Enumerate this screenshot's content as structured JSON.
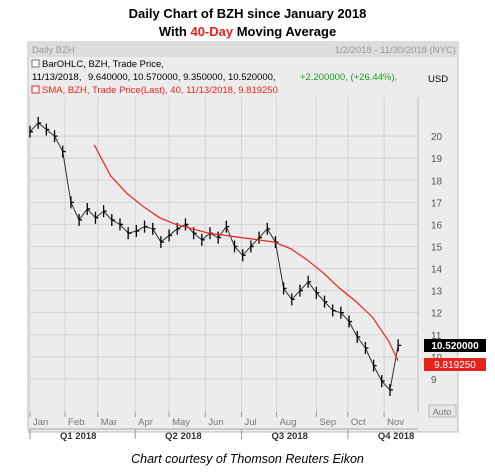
{
  "title": {
    "line1": "Daily Chart of BZH since January 2018",
    "line2_pre": "With ",
    "line2_accent": "40-Day",
    "line2_post": " Moving Average",
    "accent_color": "#e8231b"
  },
  "panel": {
    "name": "Daily BZH",
    "date_range": "1/2/2018 - 11/30/2018 (NYC)",
    "ohlc_label": "BarOHLC, BZH, Trade Price,",
    "ohlc_date": "11/13/2018,",
    "ohlc_values": "9.640000, 10.570000, 9.350000, 10.520000,",
    "ohlc_change": "+2.200000, (+26.44%),",
    "ohlc_change_color": "#1e9b1e",
    "sma_label": "SMA, BZH, Trade Price(Last),  40,  11/13/2018, 9.819250",
    "sma_color": "#e8231b",
    "unit": "USD",
    "last_price_tag": "10.520000",
    "sma_tag": "9.819250",
    "auto_label": "Auto"
  },
  "chart_data": {
    "type": "line",
    "series": [
      {
        "name": "BarOHLC, BZH, Trade Price",
        "color": "#000000",
        "points": [
          [
            "2018-01-02",
            20.2
          ],
          [
            "2018-01-09",
            20.6
          ],
          [
            "2018-01-16",
            20.3
          ],
          [
            "2018-01-23",
            20.0
          ],
          [
            "2018-01-30",
            19.3
          ],
          [
            "2018-02-06",
            17.0
          ],
          [
            "2018-02-13",
            16.2
          ],
          [
            "2018-02-20",
            16.7
          ],
          [
            "2018-02-27",
            16.3
          ],
          [
            "2018-03-06",
            16.6
          ],
          [
            "2018-03-13",
            16.2
          ],
          [
            "2018-03-20",
            16.0
          ],
          [
            "2018-03-27",
            15.6
          ],
          [
            "2018-04-03",
            15.7
          ],
          [
            "2018-04-10",
            15.9
          ],
          [
            "2018-04-17",
            15.8
          ],
          [
            "2018-04-24",
            15.2
          ],
          [
            "2018-05-01",
            15.5
          ],
          [
            "2018-05-08",
            15.8
          ],
          [
            "2018-05-15",
            16.0
          ],
          [
            "2018-05-22",
            15.6
          ],
          [
            "2018-05-29",
            15.3
          ],
          [
            "2018-06-05",
            15.6
          ],
          [
            "2018-06-12",
            15.4
          ],
          [
            "2018-06-19",
            15.9
          ],
          [
            "2018-06-26",
            15.0
          ],
          [
            "2018-07-03",
            14.6
          ],
          [
            "2018-07-10",
            15.0
          ],
          [
            "2018-07-17",
            15.4
          ],
          [
            "2018-07-24",
            15.8
          ],
          [
            "2018-07-31",
            15.2
          ],
          [
            "2018-08-07",
            13.1
          ],
          [
            "2018-08-14",
            12.6
          ],
          [
            "2018-08-21",
            13.0
          ],
          [
            "2018-08-28",
            13.4
          ],
          [
            "2018-09-04",
            12.9
          ],
          [
            "2018-09-11",
            12.5
          ],
          [
            "2018-09-18",
            12.1
          ],
          [
            "2018-09-25",
            12.0
          ],
          [
            "2018-10-02",
            11.6
          ],
          [
            "2018-10-09",
            10.9
          ],
          [
            "2018-10-16",
            10.4
          ],
          [
            "2018-10-23",
            9.6
          ],
          [
            "2018-10-30",
            8.9
          ],
          [
            "2018-11-06",
            8.5
          ],
          [
            "2018-11-13",
            10.52
          ]
        ]
      },
      {
        "name": "SMA, BZH, Trade Price(Last), 40",
        "color": "#e8231b",
        "points": [
          [
            "2018-02-26",
            19.6
          ],
          [
            "2018-03-12",
            18.2
          ],
          [
            "2018-03-26",
            17.4
          ],
          [
            "2018-04-09",
            16.8
          ],
          [
            "2018-04-23",
            16.3
          ],
          [
            "2018-05-07",
            16.0
          ],
          [
            "2018-05-21",
            15.8
          ],
          [
            "2018-06-04",
            15.6
          ],
          [
            "2018-06-18",
            15.5
          ],
          [
            "2018-07-02",
            15.4
          ],
          [
            "2018-07-16",
            15.3
          ],
          [
            "2018-07-30",
            15.2
          ],
          [
            "2018-08-13",
            14.9
          ],
          [
            "2018-08-27",
            14.4
          ],
          [
            "2018-09-10",
            13.8
          ],
          [
            "2018-09-24",
            13.1
          ],
          [
            "2018-10-08",
            12.5
          ],
          [
            "2018-10-22",
            11.8
          ],
          [
            "2018-11-05",
            10.7
          ],
          [
            "2018-11-13",
            9.819
          ]
        ]
      }
    ],
    "xlim": [
      "2018-01-02",
      "2018-11-30"
    ],
    "ylim": [
      7.5,
      21.5
    ],
    "yticks": [
      9,
      10,
      11,
      12,
      13,
      14,
      15,
      16,
      17,
      18,
      19,
      20
    ],
    "month_ticks": [
      {
        "label": "Jan",
        "date": "2018-01-02"
      },
      {
        "label": "Feb",
        "date": "2018-02-01"
      },
      {
        "label": "Mar",
        "date": "2018-03-01"
      },
      {
        "label": "Apr",
        "date": "2018-04-02"
      },
      {
        "label": "May",
        "date": "2018-05-01"
      },
      {
        "label": "Jun",
        "date": "2018-06-01"
      },
      {
        "label": "Jul",
        "date": "2018-07-02"
      },
      {
        "label": "Aug",
        "date": "2018-08-01"
      },
      {
        "label": "Sep",
        "date": "2018-09-04"
      },
      {
        "label": "Oct",
        "date": "2018-10-01"
      },
      {
        "label": "Nov",
        "date": "2018-11-01"
      }
    ],
    "quarter_ticks": [
      {
        "label": "Q1 2018",
        "date": "2018-01-02"
      },
      {
        "label": "Q2 2018",
        "date": "2018-04-02"
      },
      {
        "label": "Q3 2018",
        "date": "2018-07-02"
      },
      {
        "label": "Q4 2018",
        "date": "2018-10-01"
      }
    ],
    "grid": true,
    "legend": "top-left"
  },
  "caption": "Chart courtesy of Thomson Reuters Eikon"
}
